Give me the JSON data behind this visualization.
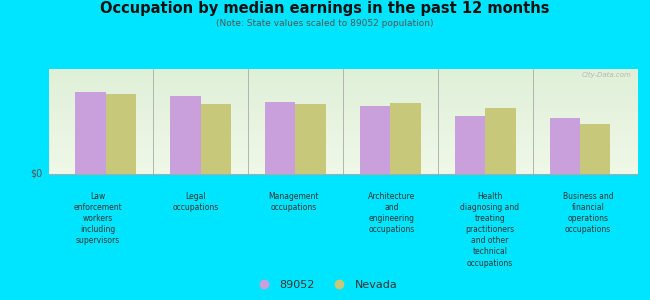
{
  "title": "Occupation by median earnings in the past 12 months",
  "subtitle": "(Note: State values scaled to 89052 population)",
  "categories": [
    "Law\nenforcement\nworkers\nincluding\nsupervisors",
    "Legal\noccupations",
    "Management\noccupations",
    "Architecture\nand\nengineering\noccupations",
    "Health\ndiagnosing and\ntreating\npractitioners\nand other\ntechnical\noccupations",
    "Business and\nfinancial\noperations\noccupations"
  ],
  "values_89052": [
    0.82,
    0.78,
    0.72,
    0.68,
    0.58,
    0.56
  ],
  "values_nevada": [
    0.8,
    0.7,
    0.7,
    0.71,
    0.66,
    0.5
  ],
  "color_89052": "#c9a0dc",
  "color_nevada": "#c8c87a",
  "background_outer": "#00e5ff",
  "background_plot_top": "#e8f5e0",
  "background_plot_bottom": "#f5faf0",
  "legend_label_89052": "89052",
  "legend_label_nevada": "Nevada",
  "ylabel": "$0",
  "bar_width": 0.32,
  "watermark": "City-Data.com"
}
